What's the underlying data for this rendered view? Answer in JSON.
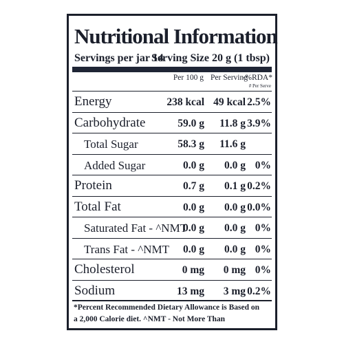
{
  "title": "Nutritional Information",
  "servings": "Servings per jar 14",
  "serving_size": "Serving Size 20 g (1 tbsp)",
  "columns": {
    "per_100g": "Per 100 g",
    "per_serving": "Per Serving",
    "rda": "-%RDA*",
    "rda_note": "# Per Serve"
  },
  "rows": [
    {
      "label": "Energy",
      "per_100g": "238 kcal",
      "per_serving": "49 kcal",
      "rda": "2.5%"
    },
    {
      "label": "Carbohydrate",
      "per_100g": "59.0 g",
      "per_serving": "11.8 g",
      "rda": "3.9%",
      "sub_rows": [
        {
          "label": "Total Sugar",
          "per_100g": "58.3 g",
          "per_serving": "11.6 g"
        },
        {
          "label": "Added Sugar",
          "per_100g": "0.0 g",
          "per_serving": "0.0 g",
          "rda": "0%"
        }
      ]
    },
    {
      "label": "Protein",
      "per_100g": "0.7 g",
      "per_serving": "0.1 g",
      "rda": "0.2%"
    },
    {
      "label": "Total Fat",
      "per_100g": "0.0 g",
      "per_serving": "0.0 g",
      "rda": "0.0%",
      "sub_rows": [
        {
          "label": "Saturated Fat - ^NMT",
          "per_100g": "0.0 g",
          "per_serving": "0.0 g",
          "rda": "0%"
        },
        {
          "label": "Trans Fat - ^NMT",
          "per_100g": "0.0 g",
          "per_serving": "0.0 g",
          "rda": "0%"
        }
      ]
    },
    {
      "label": "Cholesterol",
      "per_100g": "0 mg",
      "per_serving": "0 mg",
      "rda": "0%"
    },
    {
      "label": "Sodium",
      "per_100g": "13 mg",
      "per_serving": "3 mg",
      "rda": "0.2%"
    }
  ],
  "footnote": [
    "*Percent Recommended Dietary Allowance is Based on",
    "a 2,000 Calorie diet. ^NMT - Not More Than"
  ]
}
